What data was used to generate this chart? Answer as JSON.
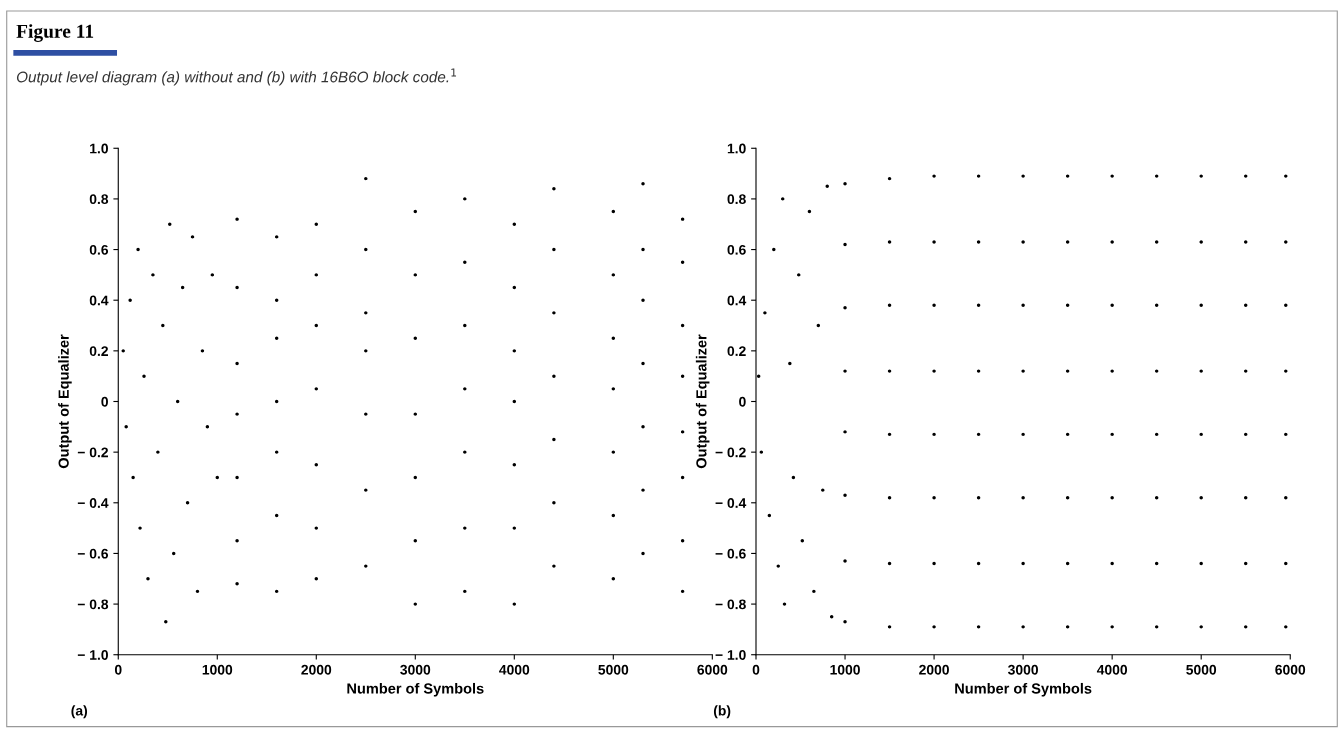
{
  "chart_data": [
    {
      "type": "scatter",
      "title": "Figure 11",
      "subtitle": "Output level diagram (a) without and (b) with 16B6O block code.$^{1}$",
      "xlabel": "Number of Symbols",
      "ylabel": "Output of Equalizer",
      "annotations": [
        "(a)"
      ],
      "marker": "circle",
      "xlim": [
        0,
        6000
      ],
      "xticks": [
        0,
        1000,
        2000,
        3000,
        4000,
        5000,
        6000
      ],
      "ylim": [
        -1.0,
        1.0
      ],
      "yticks": [
        {
          "value": -1.0,
          "label": "− 1.0"
        },
        {
          "value": -0.8,
          "label": "− 0.8"
        },
        {
          "value": -0.6,
          "label": "− 0.6"
        },
        {
          "value": -0.4,
          "label": "− 0.4"
        },
        {
          "value": -0.2,
          "label": "− 0.2"
        },
        0,
        {
          "value": 0.2,
          "label": "0.2"
        },
        {
          "value": 0.4,
          "label": "0.4"
        },
        {
          "value": 0.6,
          "label": "0.6"
        },
        {
          "value": 0.8,
          "label": "0.8"
        },
        {
          "value": 1.0,
          "label": "1.0"
        }
      ],
      "series": [
        {
          "color": "#000000",
          "x": [
            50,
            80,
            120,
            150,
            200,
            220,
            260,
            300,
            350,
            400,
            450,
            480,
            520,
            560,
            600,
            650,
            700,
            750,
            800,
            850,
            900,
            950,
            1000,
            1200,
            1200,
            1200,
            1200,
            1200,
            1200,
            1200,
            1600,
            1600,
            1600,
            1600,
            1600,
            1600,
            1600,
            2000,
            2000,
            2000,
            2000,
            2000,
            2000,
            2000,
            2500,
            2500,
            2500,
            2500,
            2500,
            2500,
            2500,
            3000,
            3000,
            3000,
            3000,
            3000,
            3000,
            3000,
            3500,
            3500,
            3500,
            3500,
            3500,
            3500,
            3500,
            4000,
            4000,
            4000,
            4000,
            4000,
            4000,
            4000,
            4400,
            4400,
            4400,
            4400,
            4400,
            4400,
            4400,
            5000,
            5000,
            5000,
            5000,
            5000,
            5000,
            5000,
            5300,
            5300,
            5300,
            5300,
            5300,
            5300,
            5300,
            5700,
            5700,
            5700,
            5700,
            5700,
            5700,
            5700,
            5700
          ],
          "values": [
            0.2,
            -0.1,
            0.4,
            -0.3,
            0.6,
            -0.5,
            0.1,
            -0.7,
            0.5,
            -0.2,
            0.3,
            -0.87,
            0.7,
            -0.6,
            0.0,
            0.45,
            -0.4,
            0.65,
            -0.75,
            0.2,
            -0.1,
            0.5,
            -0.3,
            0.72,
            0.45,
            0.15,
            -0.05,
            -0.3,
            -0.55,
            -0.72,
            0.65,
            0.4,
            0.25,
            0.0,
            -0.2,
            -0.45,
            -0.75,
            0.7,
            0.5,
            0.3,
            0.05,
            -0.25,
            -0.5,
            -0.7,
            0.88,
            0.6,
            0.35,
            0.2,
            -0.05,
            -0.35,
            -0.65,
            0.75,
            0.5,
            0.25,
            -0.05,
            -0.3,
            -0.55,
            -0.8,
            0.8,
            0.55,
            0.3,
            0.05,
            -0.2,
            -0.5,
            -0.75,
            0.7,
            0.45,
            0.2,
            0.0,
            -0.25,
            -0.5,
            -0.8,
            0.84,
            0.6,
            0.35,
            0.1,
            -0.15,
            -0.4,
            -0.65,
            0.75,
            0.5,
            0.25,
            0.05,
            -0.2,
            -0.45,
            -0.7,
            0.86,
            0.6,
            0.4,
            0.15,
            -0.1,
            -0.35,
            -0.6,
            0.72,
            0.55,
            0.3,
            0.1,
            -0.12,
            -0.3,
            -0.55,
            -0.75
          ]
        }
      ]
    },
    {
      "type": "scatter",
      "xlabel": "Number of Symbols",
      "ylabel": "Output of Equalizer",
      "annotations": [
        "(b)"
      ],
      "marker": "circle",
      "xlim": [
        0,
        6000
      ],
      "xticks": [
        0,
        1000,
        2000,
        3000,
        4000,
        5000,
        6000
      ],
      "ylim": [
        -1.0,
        1.0
      ],
      "yticks": [
        {
          "value": -1.0,
          "label": "− 1.0"
        },
        {
          "value": -0.8,
          "label": "− 0.8"
        },
        {
          "value": -0.6,
          "label": "− 0.6"
        },
        {
          "value": -0.4,
          "label": "− 0.4"
        },
        {
          "value": -0.2,
          "label": "− 0.2"
        },
        0,
        {
          "value": 0.2,
          "label": "0.2"
        },
        {
          "value": 0.4,
          "label": "0.4"
        },
        {
          "value": 0.6,
          "label": "0.6"
        },
        {
          "value": 0.8,
          "label": "0.8"
        },
        {
          "value": 1.0,
          "label": "1.0"
        }
      ],
      "series": [
        {
          "color": "#000000",
          "x": [
            30,
            60,
            100,
            150,
            200,
            250,
            300,
            320,
            380,
            420,
            480,
            520,
            600,
            650,
            700,
            750,
            800,
            850,
            1000,
            1000,
            1000,
            1000,
            1000,
            1000,
            1000,
            1000,
            1500,
            1500,
            1500,
            1500,
            1500,
            1500,
            1500,
            1500,
            2000,
            2000,
            2000,
            2000,
            2000,
            2000,
            2000,
            2000,
            2500,
            2500,
            2500,
            2500,
            2500,
            2500,
            2500,
            2500,
            3000,
            3000,
            3000,
            3000,
            3000,
            3000,
            3000,
            3000,
            3500,
            3500,
            3500,
            3500,
            3500,
            3500,
            3500,
            3500,
            4000,
            4000,
            4000,
            4000,
            4000,
            4000,
            4000,
            4000,
            4500,
            4500,
            4500,
            4500,
            4500,
            4500,
            4500,
            4500,
            5000,
            5000,
            5000,
            5000,
            5000,
            5000,
            5000,
            5000,
            5500,
            5500,
            5500,
            5500,
            5500,
            5500,
            5500,
            5500,
            5950,
            5950,
            5950,
            5950,
            5950,
            5950,
            5950,
            5950
          ],
          "values": [
            0.1,
            -0.2,
            0.35,
            -0.45,
            0.6,
            -0.65,
            0.8,
            -0.8,
            0.15,
            -0.3,
            0.5,
            -0.55,
            0.75,
            -0.75,
            0.3,
            -0.35,
            0.85,
            -0.85,
            0.86,
            0.62,
            0.37,
            0.12,
            -0.12,
            -0.37,
            -0.63,
            -0.87,
            0.88,
            0.63,
            0.38,
            0.12,
            -0.13,
            -0.38,
            -0.64,
            -0.89,
            0.89,
            0.63,
            0.38,
            0.12,
            -0.13,
            -0.38,
            -0.64,
            -0.89,
            0.89,
            0.63,
            0.38,
            0.12,
            -0.13,
            -0.38,
            -0.64,
            -0.89,
            0.89,
            0.63,
            0.38,
            0.12,
            -0.13,
            -0.38,
            -0.64,
            -0.89,
            0.89,
            0.63,
            0.38,
            0.12,
            -0.13,
            -0.38,
            -0.64,
            -0.89,
            0.89,
            0.63,
            0.38,
            0.12,
            -0.13,
            -0.38,
            -0.64,
            -0.89,
            0.89,
            0.63,
            0.38,
            0.12,
            -0.13,
            -0.38,
            -0.64,
            -0.89,
            0.89,
            0.63,
            0.38,
            0.12,
            -0.13,
            -0.38,
            -0.64,
            -0.89,
            0.89,
            0.63,
            0.38,
            0.12,
            -0.13,
            -0.38,
            -0.64,
            -0.89,
            0.89,
            0.63,
            0.38,
            0.12,
            -0.13,
            -0.38,
            -0.64,
            -0.89
          ]
        }
      ]
    }
  ]
}
